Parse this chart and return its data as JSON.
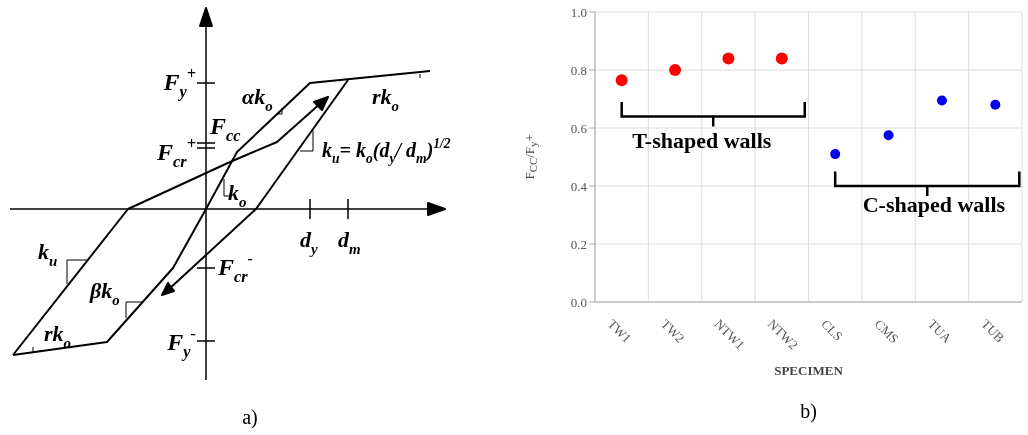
{
  "chart_data": [
    {
      "type": "other",
      "annotations": [
        "F$_{y}$$^{+}$",
        "αk$_{o}$",
        "F$_{cc}$",
        "F$_{cr}$$^{+}$",
        "k$_{u}$= k$_{o}$(d$_{y}$/ d$_{m}$)$^{1/2}$",
        "k$_{o}$",
        "rk$_{o}$",
        "d$_{y}$",
        "d$_{m}$",
        "F$_{cr}$$^{-}$",
        "k$_{u}$",
        "βk$_{o}$",
        "rk$_{o}$",
        "F$_{y}$$^{-}$",
        "a)"
      ]
    },
    {
      "type": "scatter",
      "xlabel": "SPECIMEN",
      "ylabel": "F$_{CC}$/F$_{y}$+",
      "categories": [
        "TW1",
        "TW2",
        "NTW1",
        "NTW2",
        "CLS",
        "CMS",
        "TUA",
        "TUB"
      ],
      "series": [
        {
          "color": "#ff0000",
          "values": [
            0.765,
            0.8,
            0.84,
            0.84,
            null,
            null,
            null,
            null
          ]
        },
        {
          "color": "#0000ee",
          "values": [
            null,
            null,
            null,
            null,
            0.51,
            0.575,
            0.695,
            0.68
          ]
        }
      ],
      "ylim": [
        0,
        1
      ],
      "yticks": [
        {
          "value": 0,
          "label": "0.0"
        },
        {
          "value": 0.2,
          "label": "0.2"
        },
        {
          "value": 0.4,
          "label": "0.4"
        },
        {
          "value": 0.6,
          "label": "0.6"
        },
        {
          "value": 0.8,
          "label": "0.8"
        },
        {
          "value": 1,
          "label": "1.0"
        }
      ],
      "grid": true,
      "marker": "circle",
      "annotations": [
        "T-shaped walls",
        "C-shaped walls",
        "b)"
      ]
    }
  ]
}
